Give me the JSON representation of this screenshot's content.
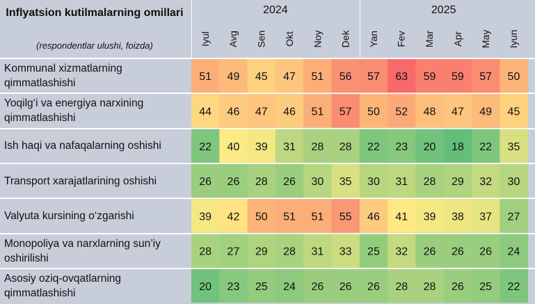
{
  "header": {
    "title": "Inflyatsion kutilmalarning omillari",
    "subtitle": "(respondentlar ulushi, foizda)"
  },
  "chart_data": {
    "type": "heatmap",
    "title": "Inflyatsion kutilmalarning omillari",
    "subtitle": "(respondentlar ulushi, foizda)",
    "years": [
      {
        "label": "2024",
        "span": 6
      },
      {
        "label": "2025",
        "span": 6
      }
    ],
    "columns": [
      "Iyul",
      "Avg",
      "Sen",
      "Okt",
      "Noy",
      "Dek",
      "Yan",
      "Fev",
      "Mar",
      "Apr",
      "May",
      "Iyun"
    ],
    "rows": [
      {
        "label": "Kommunal xizmatlarning qimmatlashishi",
        "values": [
          51,
          49,
          45,
          47,
          51,
          56,
          57,
          63,
          59,
          59,
          57,
          50
        ]
      },
      {
        "label": "Yoqilg‘i va energiya narxining qimmatlashishi",
        "values": [
          44,
          46,
          47,
          46,
          51,
          57,
          50,
          52,
          48,
          47,
          49,
          45
        ]
      },
      {
        "label": "Ish haqi va nafaqalarning oshishi",
        "values": [
          22,
          40,
          39,
          31,
          28,
          28,
          22,
          23,
          20,
          18,
          22,
          35
        ]
      },
      {
        "label": "Transport xarajatlarining oshishi",
        "values": [
          26,
          26,
          28,
          26,
          30,
          35,
          30,
          31,
          28,
          29,
          32,
          30
        ]
      },
      {
        "label": "Valyuta kursining o‘zgarishi",
        "values": [
          39,
          42,
          50,
          51,
          51,
          55,
          46,
          41,
          39,
          38,
          37,
          27
        ]
      },
      {
        "label": "Monopoliya va narxlarning sun’iy oshirilishi",
        "values": [
          28,
          27,
          29,
          28,
          31,
          33,
          25,
          32,
          26,
          26,
          26,
          24
        ]
      },
      {
        "label": "Asosiy oziq-ovqatlarning qimmatlashishi",
        "values": [
          20,
          23,
          25,
          24,
          26,
          26,
          26,
          28,
          28,
          26,
          25,
          22
        ]
      }
    ],
    "color_scale": {
      "low": "#63be7b",
      "mid": "#ffeb84",
      "high": "#f8696b"
    }
  }
}
